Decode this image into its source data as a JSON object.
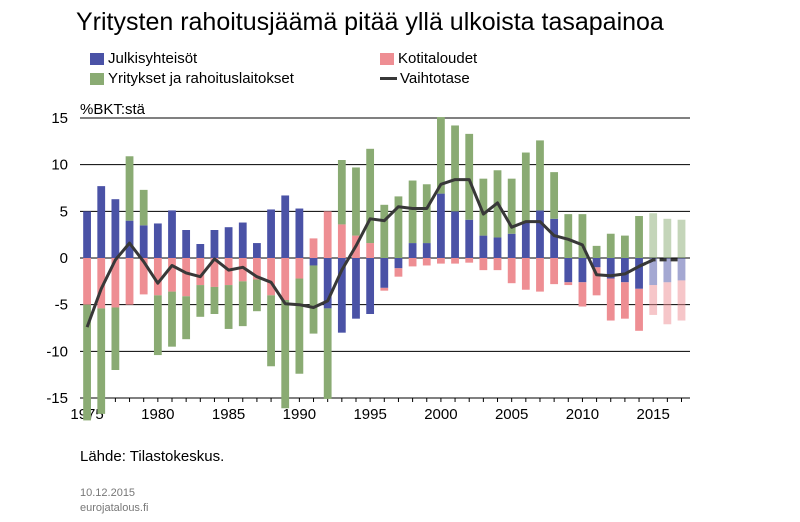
{
  "chart_data": {
    "type": "bar",
    "title": "Yritysten rahoitusjäämä pitää yllä ulkoista tasapainoa",
    "ylabel": "%BKT:stä",
    "ylim": [
      -15,
      15
    ],
    "yticks": [
      "15",
      "10",
      "5",
      "0",
      "-5",
      "-10",
      "-15"
    ],
    "xlim": [
      1975,
      2017
    ],
    "xticks": [
      "1975",
      "1980",
      "1985",
      "1990",
      "1995",
      "2000",
      "2005",
      "2010",
      "2015"
    ],
    "grid": true,
    "legend_position": "top",
    "forecast_from": 2015,
    "x": [
      1975,
      1976,
      1977,
      1978,
      1979,
      1980,
      1981,
      1982,
      1983,
      1984,
      1985,
      1986,
      1987,
      1988,
      1989,
      1990,
      1991,
      1992,
      1993,
      1994,
      1995,
      1996,
      1997,
      1998,
      1999,
      2000,
      2001,
      2002,
      2003,
      2004,
      2005,
      2006,
      2007,
      2008,
      2009,
      2010,
      2011,
      2012,
      2013,
      2014,
      2015,
      2016,
      2017
    ],
    "series": [
      {
        "name": "Julkisyhteisöt",
        "type": "bar",
        "color": "#4a52a6",
        "values": [
          5.0,
          7.7,
          6.3,
          4.0,
          3.5,
          3.7,
          5.1,
          3.0,
          1.5,
          3.0,
          3.3,
          3.8,
          1.6,
          5.2,
          6.7,
          5.3,
          -0.8,
          -5.4,
          -8.0,
          -6.5,
          -6.0,
          -3.2,
          -1.1,
          1.6,
          1.6,
          6.9,
          5.0,
          4.1,
          2.4,
          2.2,
          2.6,
          3.8,
          5.1,
          4.2,
          -2.6,
          -2.6,
          -1.0,
          -2.2,
          -2.6,
          -3.3,
          -2.9,
          -2.6,
          -2.4
        ]
      },
      {
        "name": "Kotitaloudet",
        "type": "bar",
        "color": "#ee8e93",
        "values": [
          -5.0,
          -5.4,
          -5.3,
          -5.0,
          -3.9,
          -4.0,
          -3.6,
          -4.1,
          -2.9,
          -3.1,
          -2.9,
          -2.5,
          -2.3,
          -4.0,
          -4.5,
          -2.2,
          2.1,
          5.0,
          3.6,
          2.4,
          1.6,
          -0.3,
          -0.9,
          -0.9,
          -0.8,
          -0.6,
          -0.6,
          -0.5,
          -1.3,
          -1.3,
          -2.7,
          -3.4,
          -3.6,
          -2.8,
          -0.3,
          -2.6,
          -3.0,
          -4.5,
          -3.9,
          -4.5,
          -3.2,
          -4.5,
          -4.3
        ]
      },
      {
        "name": "Yritykset ja rahoituslaitokset",
        "type": "bar",
        "color": "#8aab73",
        "values": [
          -12.4,
          -11.3,
          -6.7,
          6.9,
          3.8,
          -6.4,
          -5.9,
          -4.6,
          -3.4,
          -2.9,
          -4.7,
          -4.8,
          -3.4,
          -7.6,
          -11.6,
          -10.2,
          -7.3,
          -9.7,
          6.9,
          7.3,
          10.1,
          5.7,
          6.6,
          6.7,
          6.3,
          8.2,
          9.2,
          9.2,
          6.1,
          7.2,
          5.9,
          7.5,
          7.5,
          5.0,
          4.7,
          4.7,
          1.3,
          2.6,
          2.4,
          4.5,
          4.8,
          4.2,
          4.1
        ]
      },
      {
        "name": "Vaihtotase",
        "type": "line",
        "color": "#383838",
        "values": [
          -7.4,
          -3.3,
          -0.2,
          1.6,
          -0.4,
          -2.7,
          -0.8,
          -1.6,
          -2.0,
          -0.1,
          -1.3,
          -1.0,
          -2.0,
          -2.6,
          -4.9,
          -5.0,
          -5.3,
          -4.6,
          -1.3,
          1.3,
          4.2,
          4.0,
          5.5,
          5.3,
          5.3,
          7.9,
          8.4,
          8.4,
          4.7,
          5.9,
          3.3,
          3.9,
          3.9,
          2.4,
          2.0,
          1.4,
          -1.8,
          -1.9,
          -1.7,
          -0.9,
          -0.2,
          -0.2,
          -0.2
        ]
      }
    ]
  },
  "footer": {
    "source": "Lähde: Tilastokeskus.",
    "date": "10.12.2015",
    "site": "eurojatalous.fi"
  }
}
